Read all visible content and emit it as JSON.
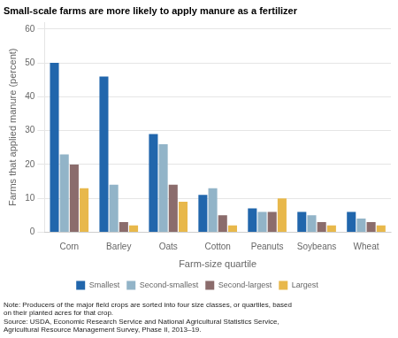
{
  "chart_data": {
    "type": "bar",
    "title": "Small-scale farms are more likely to apply manure as a fertilizer",
    "ylabel": "Farms that applied manure (percent)",
    "xlabel": "Farm-size quartile",
    "categories": [
      "Corn",
      "Barley",
      "Oats",
      "Cotton",
      "Peanuts",
      "Soybeans",
      "Wheat"
    ],
    "series": [
      {
        "name": "Smallest",
        "color": "#2166ac",
        "values": [
          50,
          46,
          29,
          11,
          7,
          6,
          6
        ]
      },
      {
        "name": "Second-smallest",
        "color": "#92b4c8",
        "values": [
          23,
          14,
          26,
          13,
          6,
          5,
          4
        ]
      },
      {
        "name": "Second-largest",
        "color": "#8b6c6c",
        "values": [
          20,
          3,
          14,
          5,
          6,
          3,
          3
        ]
      },
      {
        "name": "Largest",
        "color": "#e8b84b",
        "values": [
          13,
          2,
          9,
          2,
          10,
          2,
          2
        ]
      }
    ],
    "ylim": [
      0,
      62
    ],
    "yticks": [
      0,
      10,
      20,
      30,
      40,
      50,
      60
    ],
    "grid": true,
    "legend": "bottom",
    "annotations": [
      "Note: Producers of the major field crops are sorted into four size classes, or quartiles, based\non their planted acres for that crop.",
      "Source: USDA, Economic Research Service and National Agricultural Statistics Service,\nAgricultural Resource Management Survey, Phase II, 2013–19."
    ]
  }
}
